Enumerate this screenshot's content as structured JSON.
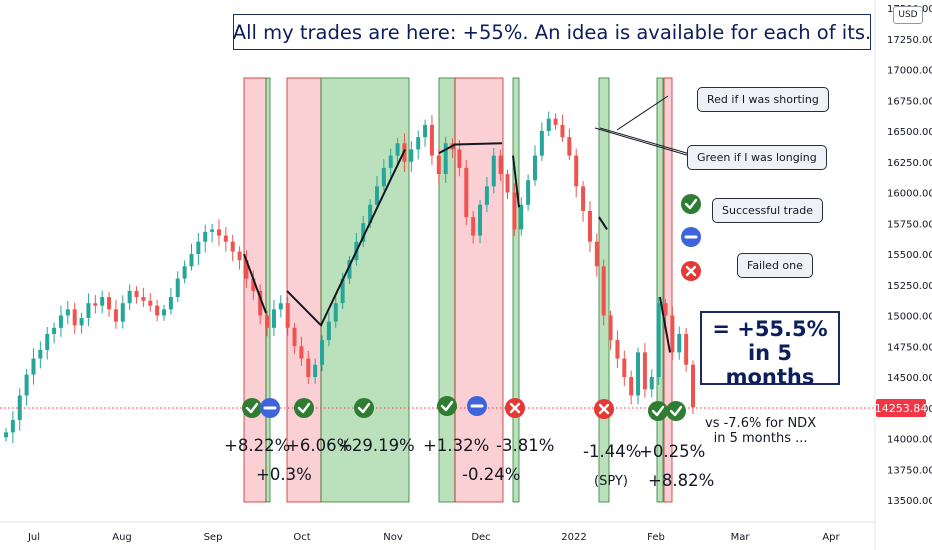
{
  "title": "All my trades are here: +55%. An idea is available for each of its.",
  "currency": "USD",
  "last_price": "14253.84",
  "colors": {
    "up": "#26a69a",
    "down": "#ef5350",
    "long_zone": "rgba(76, 175, 80, 0.38)",
    "short_zone": "rgba(244, 143, 153, 0.42)",
    "price_line": "#f23645",
    "accent": "#1c2a63"
  },
  "legend_notes": {
    "short": "Red if I was shorting",
    "long": "Green if I was longing",
    "success": "Successful trade",
    "fail": "Failed one"
  },
  "result": {
    "line1": "= +55.5%",
    "line2": "in 5 months"
  },
  "comparison": {
    "line1": "vs -7.6% for NDX",
    "line2": "in 5 months ..."
  },
  "trade_labels": [
    "+8.22%",
    "+0.3%",
    "+6.06%",
    "+29.19%",
    "+1.32%",
    "-0.24%",
    "-3.81%",
    "-1.44%",
    "(SPY)",
    "+0.25%",
    "+8.82%"
  ],
  "chart_data": {
    "type": "candlestick",
    "title": "All my trades are here: +55%. An idea is available for each of its.",
    "ylabel": "USD",
    "ylim": [
      13300,
      17650
    ],
    "x_ticks": [
      "Jul",
      "Aug",
      "Sep",
      "Oct",
      "Nov",
      "Dec",
      "2022",
      "Feb",
      "Mar",
      "Apr"
    ],
    "y_ticks": [
      "13500.00",
      "13750.00",
      "14000.00",
      "14250.00",
      "14500.00",
      "14750.00",
      "15000.00",
      "15250.00",
      "15500.00",
      "15750.00",
      "16000.00",
      "16250.00",
      "16500.00",
      "16750.00",
      "17000.00",
      "17250.00",
      "17500.00"
    ],
    "close_series_approx": [
      14050,
      14150,
      14350,
      14520,
      14650,
      14720,
      14850,
      14900,
      15000,
      15050,
      14920,
      14980,
      15100,
      15080,
      15150,
      15050,
      14950,
      15100,
      15200,
      15150,
      15120,
      15080,
      15000,
      15050,
      15150,
      15300,
      15400,
      15500,
      15600,
      15680,
      15700,
      15650,
      15600,
      15520,
      15450,
      15300,
      15200,
      15000,
      14900,
      15050,
      15100,
      14900,
      14750,
      14650,
      14500,
      14600,
      14800,
      14950,
      15100,
      15300,
      15450,
      15600,
      15750,
      15900,
      16050,
      16200,
      16300,
      16400,
      16250,
      16350,
      16450,
      16550,
      16300,
      16150,
      16400,
      16350,
      16200,
      15800,
      15650,
      15900,
      16050,
      16300,
      16150,
      16000,
      15700,
      15900,
      16100,
      16300,
      16500,
      16600,
      16550,
      16450,
      16300,
      16050,
      15850,
      15600,
      15400,
      15000,
      14800,
      14650,
      14500,
      14350,
      14700,
      14400,
      14500,
      15100,
      15000,
      14700,
      14850,
      14600,
      14253.84
    ],
    "trades": [
      {
        "direction": "short",
        "label": "+8.22%",
        "result": "success"
      },
      {
        "direction": "long",
        "label": "+0.3%",
        "result": "neutral"
      },
      {
        "direction": "short",
        "label": "+6.06%",
        "result": "success"
      },
      {
        "direction": "long",
        "label": "+29.19%",
        "result": "success"
      },
      {
        "direction": "long",
        "label": "+1.32%",
        "result": "success"
      },
      {
        "direction": "short",
        "label": "-0.24%",
        "result": "neutral"
      },
      {
        "direction": "long",
        "label": "-3.81%",
        "result": "fail"
      },
      {
        "direction": "long",
        "label": "-1.44% (SPY)",
        "result": "fail"
      },
      {
        "direction": "long",
        "label": "+0.25%",
        "result": "success"
      },
      {
        "direction": "short",
        "label": "+8.82%",
        "result": "success"
      }
    ],
    "last_value": 14253.84,
    "grid": false,
    "legend": "right"
  }
}
